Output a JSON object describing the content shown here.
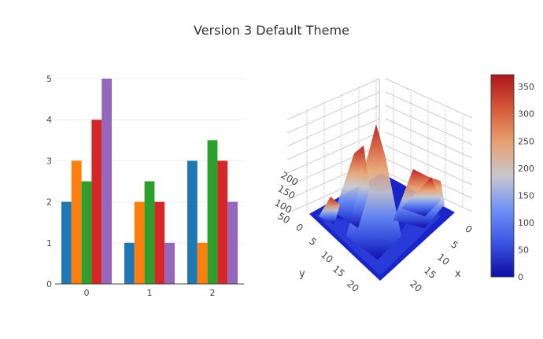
{
  "title": "Version 3 Default Theme",
  "chart_data": [
    {
      "type": "bar",
      "categories": [
        "0",
        "1",
        "2"
      ],
      "series": [
        {
          "color": "#1f77b4",
          "values": [
            2,
            1,
            3
          ]
        },
        {
          "color": "#ff7f0e",
          "values": [
            3,
            2,
            1
          ]
        },
        {
          "color": "#2ca02c",
          "values": [
            2.5,
            2.5,
            3.5
          ]
        },
        {
          "color": "#d62728",
          "values": [
            4,
            2,
            3
          ]
        },
        {
          "color": "#9467bd",
          "values": [
            5,
            1,
            2
          ]
        }
      ],
      "yticks": [
        "0",
        "1",
        "2",
        "3",
        "4",
        "5"
      ],
      "ylim": [
        0,
        5
      ],
      "grid": true
    },
    {
      "type": "surface",
      "xlabel": "x",
      "ylabel": "y",
      "xticks": [
        "0",
        "5",
        "10",
        "15",
        "20"
      ],
      "yticks": [
        "0",
        "5",
        "10",
        "15",
        "20"
      ],
      "zticks": [
        "50",
        "100",
        "150",
        "200"
      ],
      "colorbar": {
        "ticks": [
          "0",
          "50",
          "100",
          "150",
          "200",
          "250",
          "300",
          "350"
        ],
        "range": [
          0,
          372
        ],
        "colorscale": [
          "#0d0ca8",
          "#3a55e0",
          "#6f92f5",
          "#c8c8cc",
          "#e8a070",
          "#d55a38",
          "#b0141c"
        ]
      }
    }
  ]
}
